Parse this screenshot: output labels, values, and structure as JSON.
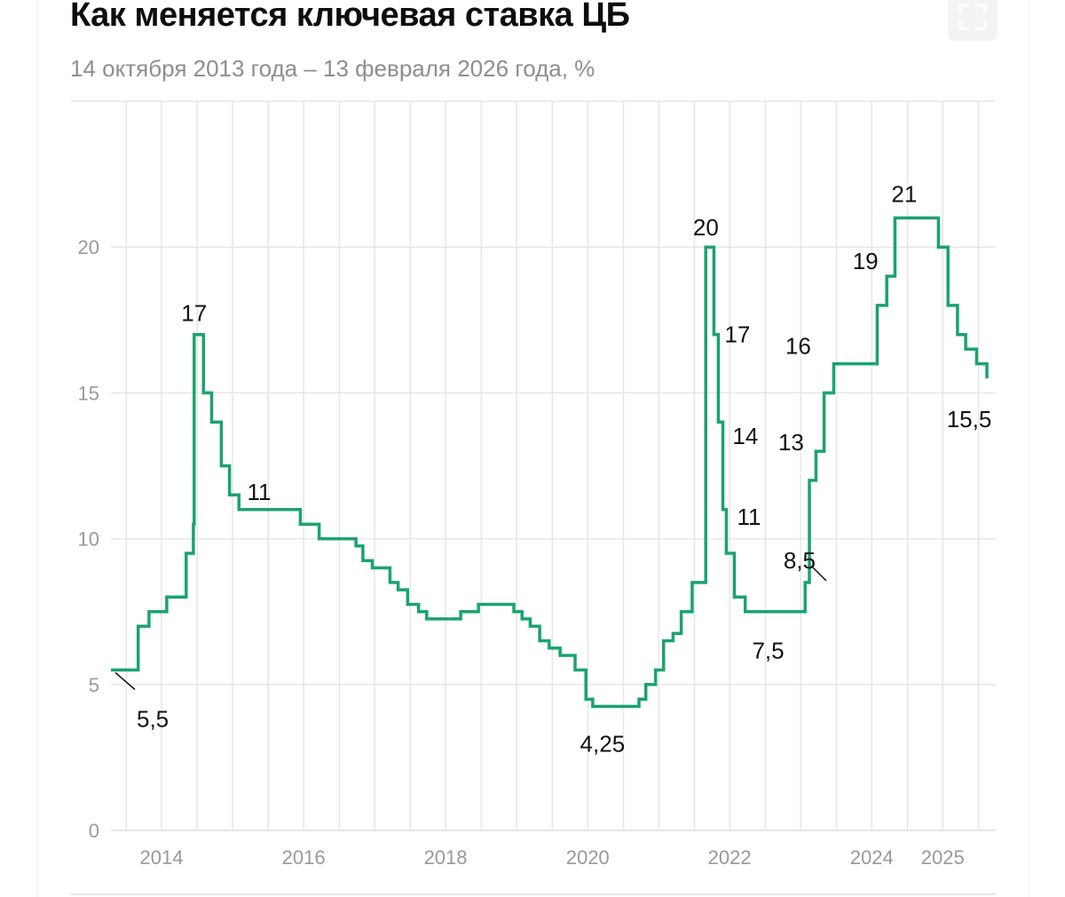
{
  "header": {
    "title": "Как меняется ключевая ставка ЦБ",
    "subtitle": "14 октября 2013 года – 13 февраля 2026 года, %",
    "expand_icon": "expand-icon"
  },
  "colors": {
    "line": "#1aa36e",
    "grid": "#e6e6e6",
    "tick": "#999999",
    "annotation": "#111111"
  },
  "chart_data": {
    "type": "line",
    "step": "after",
    "title": "Как меняется ключевая ставка ЦБ",
    "subtitle": "14 октября 2013 года – 13 февраля 2026 года, %",
    "xlabel": "",
    "ylabel": "",
    "xlim": [
      "2013-10-14",
      "2026-02-13"
    ],
    "ylim": [
      0,
      25
    ],
    "grid": true,
    "legend": "none",
    "y_ticks": [
      0,
      5,
      10,
      15,
      20
    ],
    "y_tick_labels": [
      "0",
      "5",
      "10",
      "15",
      "20"
    ],
    "x_ticks": [
      "2014-07-01",
      "2016-07-01",
      "2018-07-01",
      "2020-07-01",
      "2022-07-01",
      "2024-07-01",
      "2025-07-01"
    ],
    "x_tick_labels": [
      "2014",
      "2016",
      "2018",
      "2020",
      "2022",
      "2024",
      "2025"
    ],
    "series": [
      {
        "x": [
          "2013-10-14",
          "2014-03-03",
          "2014-04-28",
          "2014-07-28",
          "2014-11-05",
          "2014-12-12",
          "2014-12-16",
          "2015-02-02",
          "2015-03-16",
          "2015-05-05",
          "2015-06-16",
          "2015-08-03",
          "2016-06-14",
          "2016-09-19",
          "2017-03-27",
          "2017-05-02",
          "2017-06-19",
          "2017-09-18",
          "2017-10-30",
          "2017-12-18",
          "2018-02-12",
          "2018-03-26",
          "2018-09-17",
          "2018-12-17",
          "2019-06-17",
          "2019-07-29",
          "2019-09-09",
          "2019-10-28",
          "2019-12-16",
          "2020-02-10",
          "2020-04-27",
          "2020-06-22",
          "2020-07-27",
          "2021-03-22",
          "2021-04-26",
          "2021-06-15",
          "2021-07-26",
          "2021-09-13",
          "2021-10-25",
          "2021-12-20",
          "2022-02-28",
          "2022-04-11",
          "2022-05-04",
          "2022-05-27",
          "2022-06-14",
          "2022-07-25",
          "2022-09-19",
          "2023-07-24",
          "2023-08-15",
          "2023-09-18",
          "2023-10-30",
          "2023-12-18",
          "2024-07-29",
          "2024-09-16",
          "2024-10-28",
          "2025-06-09",
          "2025-07-28",
          "2025-09-15",
          "2025-10-27",
          "2025-12-22",
          "2026-02-13"
        ],
        "y": [
          5.5,
          7,
          7.5,
          8,
          9.5,
          10.5,
          17,
          15,
          14,
          12.5,
          11.5,
          11,
          10.5,
          10,
          9.75,
          9.25,
          9,
          8.5,
          8.25,
          7.75,
          7.5,
          7.25,
          7.5,
          7.75,
          7.5,
          7.25,
          7,
          6.5,
          6.25,
          6,
          5.5,
          4.5,
          4.25,
          4.5,
          5,
          5.5,
          6.5,
          6.75,
          7.5,
          8.5,
          20,
          17,
          14,
          11,
          9.5,
          8,
          7.5,
          8.5,
          12,
          13,
          15,
          16,
          18,
          19,
          21,
          20,
          18,
          17,
          16.5,
          16,
          15.5
        ]
      }
    ],
    "annotations": [
      {
        "text": "5,5",
        "date": "2013-11-15",
        "value": 5.5,
        "leader": true
      },
      {
        "text": "17",
        "date": "2014-12-16",
        "value": 17,
        "leader": false
      },
      {
        "text": "11",
        "date": "2015-11-15",
        "value": 11,
        "leader": false
      },
      {
        "text": "4,25",
        "date": "2020-09-15",
        "value": 4.25,
        "leader": false
      },
      {
        "text": "20",
        "date": "2022-03-10",
        "value": 20,
        "leader": false
      },
      {
        "text": "17",
        "date": "2022-04-11",
        "value": 17,
        "leader": false
      },
      {
        "text": "14",
        "date": "2022-05-04",
        "value": 14,
        "leader": false
      },
      {
        "text": "11",
        "date": "2022-05-27",
        "value": 11,
        "leader": false
      },
      {
        "text": "7,5",
        "date": "2023-01-15",
        "value": 7.5,
        "leader": false
      },
      {
        "text": "8,5",
        "date": "2023-08-01",
        "value": 8.5,
        "leader": true
      },
      {
        "text": "13",
        "date": "2023-09-18",
        "value": 13,
        "leader": false
      },
      {
        "text": "16",
        "date": "2023-12-18",
        "value": 16,
        "leader": false
      },
      {
        "text": "19",
        "date": "2024-09-16",
        "value": 19,
        "leader": false
      },
      {
        "text": "21",
        "date": "2024-12-15",
        "value": 21,
        "leader": false
      },
      {
        "text": "15,5",
        "date": "2026-02-13",
        "value": 15.5,
        "leader": false
      }
    ]
  }
}
